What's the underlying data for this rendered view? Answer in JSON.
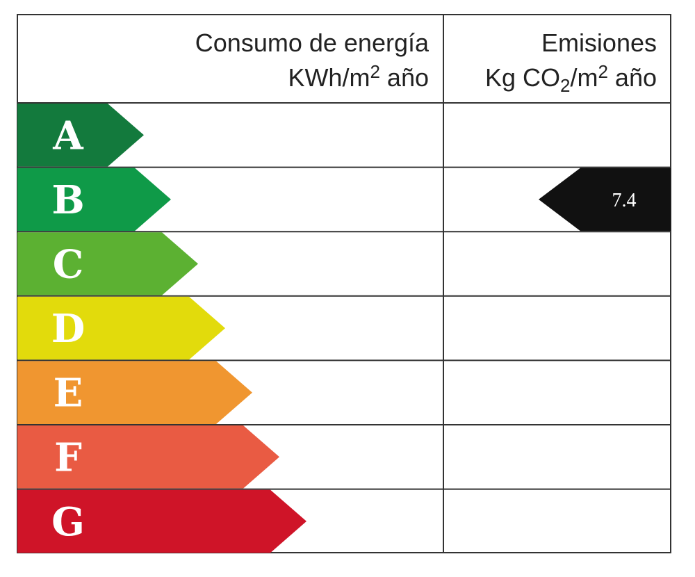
{
  "energy_header": {
    "title": "Consumo de energía",
    "unit": [
      "KWh/m",
      "2",
      " año"
    ]
  },
  "emissions_header": {
    "title": "Emisiones",
    "unit": [
      "Kg CO",
      "2",
      "/m",
      "2",
      " año"
    ]
  },
  "ratings": [
    {
      "letter": "A",
      "color": "#137a3d"
    },
    {
      "letter": "B",
      "color": "#0f9a48",
      "emission": 7.4
    },
    {
      "letter": "C",
      "color": "#5cb132"
    },
    {
      "letter": "D",
      "color": "#e2db0c"
    },
    {
      "letter": "E",
      "color": "#f09630"
    },
    {
      "letter": "F",
      "color": "#e95b43"
    },
    {
      "letter": "G",
      "color": "#cf1428"
    }
  ]
}
